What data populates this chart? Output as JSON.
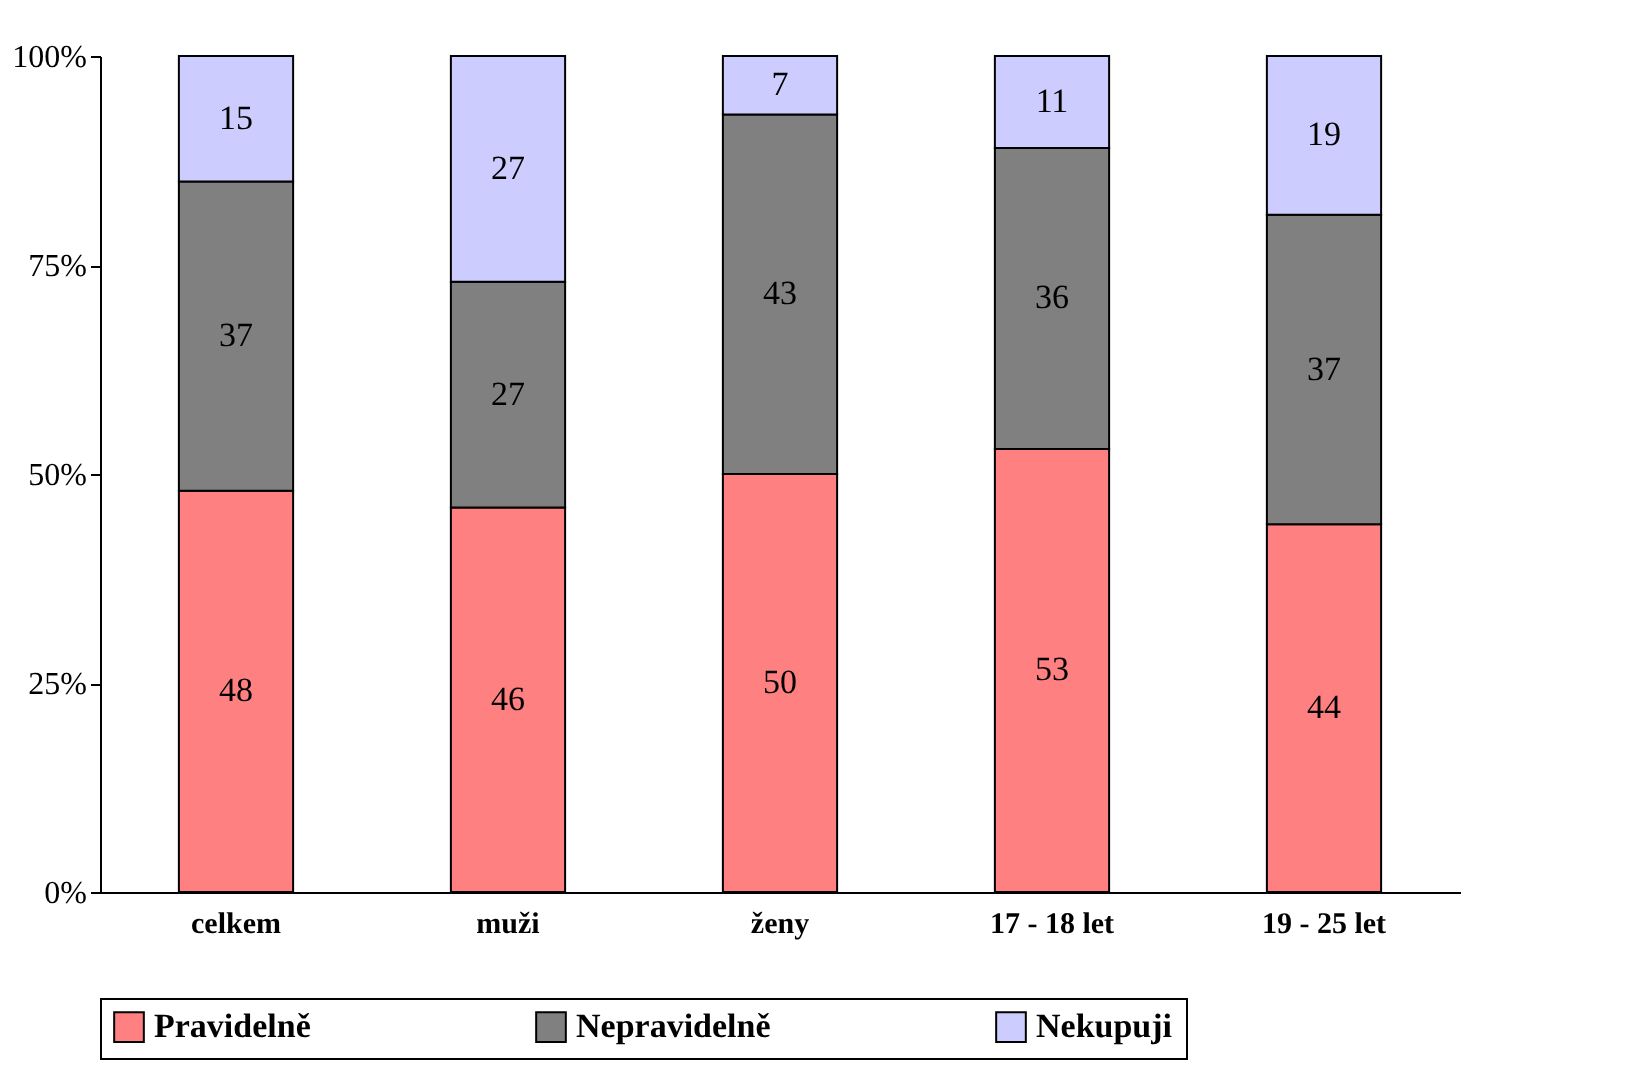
{
  "chart_data": {
    "type": "bar",
    "stacked": true,
    "categories": [
      "celkem",
      "muži",
      "ženy",
      "17 - 18 let",
      "19 - 25 let"
    ],
    "series": [
      {
        "name": "Pravidelně",
        "color": "#ff8080",
        "values": [
          48,
          46,
          50,
          53,
          44
        ]
      },
      {
        "name": "Nepravidelně",
        "color": "#808080",
        "values": [
          37,
          27,
          43,
          36,
          37
        ]
      },
      {
        "name": "Nekupuji",
        "color": "#ccccff",
        "values": [
          15,
          27,
          7,
          11,
          19
        ]
      }
    ],
    "ylim": [
      0,
      100
    ],
    "yticks": [
      {
        "value": 0,
        "label": "0%"
      },
      {
        "value": 25,
        "label": "25%"
      },
      {
        "value": 50,
        "label": "50%"
      },
      {
        "value": 75,
        "label": "75%"
      },
      {
        "value": 100,
        "label": "100%"
      }
    ],
    "data_labels": true,
    "legend": "bottom",
    "grid": false
  }
}
